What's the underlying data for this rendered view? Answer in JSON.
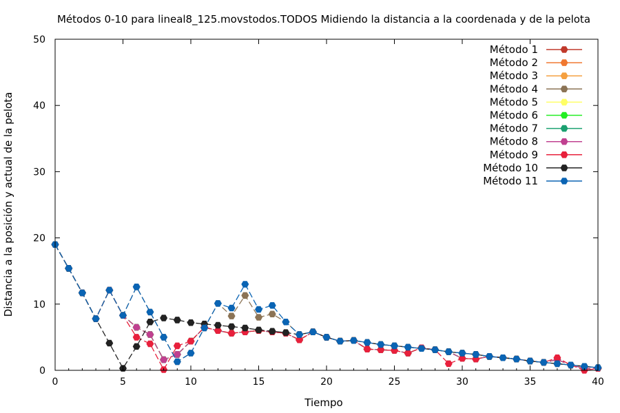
{
  "chart_data": {
    "type": "line",
    "title": "Métodos 0-10 para lineal8_125.movstodos.TODOS Midiendo la distancia a la coordenada y de la pelota",
    "xlabel": "Tiempo",
    "ylabel": "Distancia a la posición y actual de la pelota",
    "xlim": [
      0,
      40
    ],
    "ylim": [
      0,
      50
    ],
    "x_ticks": [
      0,
      5,
      10,
      15,
      20,
      25,
      30,
      35,
      40
    ],
    "y_ticks": [
      0,
      10,
      20,
      30,
      40,
      50
    ],
    "grid": false,
    "legend_position": "top-right",
    "x": [
      0,
      1,
      2,
      3,
      4,
      5,
      6,
      7,
      8,
      9,
      10,
      11,
      12,
      13,
      14,
      15,
      16,
      17,
      18,
      19,
      20,
      21,
      22,
      23,
      24,
      25,
      26,
      27,
      28,
      29,
      30,
      31,
      32,
      33,
      34,
      35,
      36,
      37,
      38,
      39,
      40
    ],
    "series": [
      {
        "name": "Método 1",
        "color": "#c0392b",
        "values": [
          19.0,
          15.4,
          11.7,
          7.8,
          12.1,
          8.3,
          6.5,
          5.4,
          1.6,
          2.4,
          4.4,
          6.5,
          6.0,
          5.6,
          5.8,
          6.0,
          5.8,
          5.6,
          4.6,
          5.8,
          5.0,
          4.4,
          4.5,
          3.2,
          3.1,
          3.0,
          2.6,
          3.4,
          3.1,
          2.8,
          1.8,
          1.7,
          2.1,
          1.9,
          1.7,
          1.4,
          1.2,
          1.6,
          0.8,
          0.3,
          0.3
        ]
      },
      {
        "name": "Método 2",
        "color": "#f07830",
        "values": [
          19.0,
          15.4,
          11.7,
          7.8,
          12.1,
          8.3,
          6.5,
          5.4,
          1.6,
          2.4,
          4.4,
          6.5,
          6.0,
          5.6,
          5.8,
          6.0,
          5.8,
          5.6,
          4.6,
          5.8,
          5.0,
          4.4,
          4.5,
          3.2,
          3.1,
          3.0,
          2.6,
          3.4,
          3.1,
          2.8,
          1.8,
          1.7,
          2.1,
          1.9,
          1.7,
          1.4,
          1.2,
          1.6,
          0.8,
          0.3,
          0.3
        ]
      },
      {
        "name": "Método 3",
        "color": "#f5a040",
        "values": [
          19.0,
          15.4,
          11.7,
          7.8,
          12.1,
          8.3,
          6.5,
          5.4,
          1.6,
          2.4,
          4.4,
          6.5,
          6.0,
          5.6,
          5.8,
          6.0,
          5.8,
          5.6,
          4.6,
          5.8,
          5.0,
          4.4,
          4.5,
          3.2,
          3.1,
          3.0,
          2.6,
          3.4,
          3.1,
          2.8,
          1.8,
          1.7,
          2.1,
          1.9,
          1.7,
          1.4,
          1.2,
          1.6,
          0.8,
          0.3,
          0.3
        ]
      },
      {
        "name": "Método 4",
        "color": "#8b7355",
        "values": [
          19.0,
          15.4,
          11.7,
          7.8,
          12.1,
          8.3,
          12.6,
          8.8,
          5.0,
          1.3,
          2.6,
          6.4,
          10.1,
          8.2,
          11.3,
          8.0,
          8.5,
          7.3,
          5.4,
          5.8,
          5.0,
          4.4,
          4.5,
          4.2,
          3.9,
          3.7,
          3.5,
          3.3,
          3.1,
          2.8,
          2.6,
          2.4,
          2.1,
          1.9,
          1.7,
          1.4,
          1.2,
          1.0,
          0.8,
          0.6,
          0.4
        ]
      },
      {
        "name": "Método 5",
        "color": "#ffff66",
        "values": [
          19.0,
          15.4,
          11.7,
          7.8,
          12.1,
          8.3,
          6.5,
          5.4,
          1.6,
          2.4,
          4.4,
          6.5,
          6.0,
          5.6,
          5.8,
          6.0,
          5.8,
          5.6,
          4.6,
          5.8,
          5.0,
          4.4,
          4.5,
          3.2,
          3.1,
          3.0,
          2.6,
          3.4,
          3.1,
          2.8,
          1.8,
          1.7,
          2.1,
          1.9,
          1.7,
          1.4,
          1.2,
          1.6,
          0.8,
          0.3,
          0.3
        ]
      },
      {
        "name": "Método 6",
        "color": "#22ee22",
        "values": [
          19.0,
          15.4,
          11.7,
          7.8,
          12.1,
          8.3,
          6.5,
          5.4,
          1.6,
          2.4,
          4.4,
          6.5,
          6.0,
          5.6,
          5.8,
          6.0,
          5.8,
          5.6,
          4.6,
          5.8,
          5.0,
          4.4,
          4.5,
          3.2,
          3.1,
          3.0,
          2.6,
          3.4,
          3.1,
          2.8,
          1.8,
          1.7,
          2.1,
          1.9,
          1.7,
          1.4,
          1.2,
          1.6,
          0.8,
          0.3,
          0.3
        ]
      },
      {
        "name": "Método 7",
        "color": "#1aa070",
        "values": [
          19.0,
          15.4,
          11.7,
          7.8,
          12.1,
          8.3,
          6.5,
          5.4,
          1.6,
          2.4,
          4.4,
          6.5,
          6.0,
          5.6,
          5.8,
          6.0,
          5.8,
          5.6,
          4.6,
          5.8,
          5.0,
          4.4,
          4.5,
          3.2,
          3.1,
          3.0,
          2.6,
          3.4,
          3.1,
          2.8,
          1.8,
          1.7,
          2.1,
          1.9,
          1.7,
          1.4,
          1.2,
          1.6,
          0.8,
          0.3,
          0.3
        ]
      },
      {
        "name": "Método 8",
        "color": "#c04090",
        "values": [
          19.0,
          15.4,
          11.7,
          7.8,
          12.1,
          8.3,
          6.5,
          5.4,
          1.6,
          2.4,
          4.4,
          6.5,
          6.0,
          5.6,
          5.8,
          6.0,
          5.8,
          5.6,
          4.6,
          5.8,
          5.0,
          4.4,
          4.5,
          3.2,
          3.1,
          3.0,
          2.6,
          3.4,
          3.1,
          2.8,
          1.8,
          1.7,
          2.1,
          1.9,
          1.7,
          1.4,
          1.2,
          1.6,
          0.8,
          0.3,
          0.3
        ]
      },
      {
        "name": "Método 9",
        "color": "#e8203c",
        "values": [
          19.0,
          15.4,
          11.7,
          7.8,
          12.1,
          8.3,
          5.0,
          4.0,
          0.1,
          3.7,
          4.4,
          6.5,
          6.0,
          5.6,
          5.8,
          6.0,
          5.8,
          5.6,
          4.6,
          5.8,
          5.0,
          4.4,
          4.5,
          3.2,
          3.1,
          3.0,
          2.6,
          3.4,
          3.1,
          1.0,
          1.8,
          1.7,
          2.1,
          1.9,
          1.7,
          1.4,
          1.2,
          1.9,
          0.8,
          0.0,
          0.3
        ]
      },
      {
        "name": "Método 10",
        "color": "#222222",
        "values": [
          19.0,
          15.4,
          11.7,
          7.8,
          4.1,
          0.3,
          3.6,
          7.3,
          7.9,
          7.6,
          7.2,
          7.0,
          6.8,
          6.6,
          6.4,
          6.1,
          5.9,
          5.7,
          5.4,
          5.8,
          5.0,
          4.4,
          4.5,
          4.2,
          3.9,
          3.7,
          3.5,
          3.3,
          3.1,
          2.8,
          2.6,
          2.4,
          2.1,
          1.9,
          1.7,
          1.4,
          1.2,
          1.0,
          0.8,
          0.6,
          0.4
        ]
      },
      {
        "name": "Método 11",
        "color": "#0a64b4",
        "values": [
          19.0,
          15.4,
          11.7,
          7.8,
          12.1,
          8.3,
          12.6,
          8.8,
          5.0,
          1.3,
          2.6,
          6.4,
          10.1,
          9.4,
          13.0,
          9.2,
          9.8,
          7.3,
          5.4,
          5.8,
          5.0,
          4.4,
          4.5,
          4.2,
          3.9,
          3.7,
          3.5,
          3.3,
          3.1,
          2.8,
          2.6,
          2.4,
          2.1,
          1.9,
          1.7,
          1.4,
          1.2,
          1.0,
          0.8,
          0.6,
          0.4
        ]
      }
    ]
  }
}
